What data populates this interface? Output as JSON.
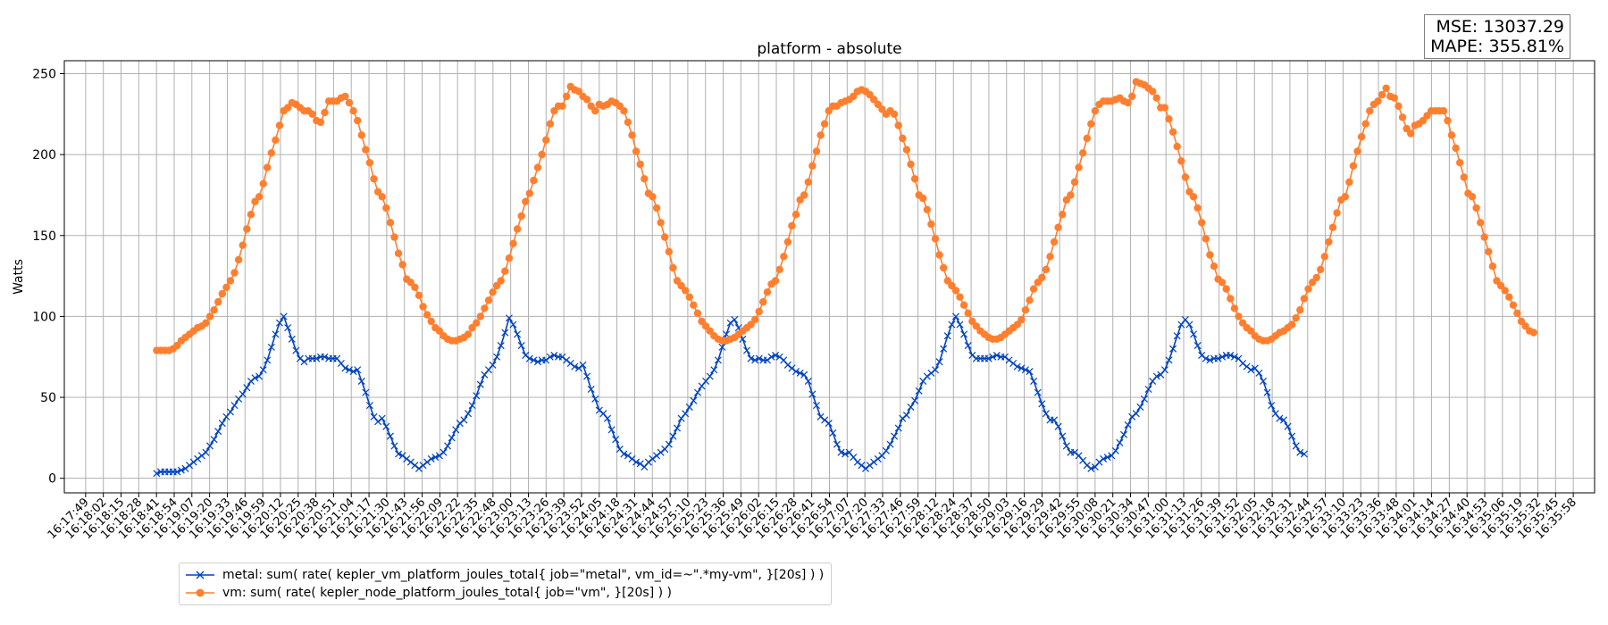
{
  "metrics": {
    "mse": "MSE: 13037.29",
    "mape": "MAPE: 355.81%"
  },
  "chart_data": {
    "type": "line",
    "title": "platform - absolute",
    "xlabel": "",
    "ylabel": "Watts",
    "ylim": [
      -9,
      258
    ],
    "yticks": [
      0,
      50,
      100,
      150,
      200,
      250
    ],
    "grid": true,
    "legend_position": "lower-left, below plot",
    "x_ticks": [
      "16:17:49",
      "16:18:02",
      "16:18:15",
      "16:18:28",
      "16:18:41",
      "16:18:54",
      "16:19:07",
      "16:19:20",
      "16:19:33",
      "16:19:46",
      "16:19:59",
      "16:20:12",
      "16:20:25",
      "16:20:38",
      "16:20:51",
      "16:21:04",
      "16:21:17",
      "16:21:30",
      "16:21:43",
      "16:21:56",
      "16:22:09",
      "16:22:22",
      "16:22:35",
      "16:22:48",
      "16:23:00",
      "16:23:13",
      "16:23:26",
      "16:23:39",
      "16:23:52",
      "16:24:05",
      "16:24:18",
      "16:24:31",
      "16:24:44",
      "16:24:57",
      "16:25:10",
      "16:25:23",
      "16:25:36",
      "16:25:49",
      "16:26:02",
      "16:26:15",
      "16:26:28",
      "16:26:41",
      "16:26:54",
      "16:27:07",
      "16:27:20",
      "16:27:33",
      "16:27:46",
      "16:27:59",
      "16:28:12",
      "16:28:24",
      "16:28:37",
      "16:28:50",
      "16:29:03",
      "16:29:16",
      "16:29:29",
      "16:29:42",
      "16:29:55",
      "16:30:08",
      "16:30:21",
      "16:30:34",
      "16:30:47",
      "16:31:00",
      "16:31:13",
      "16:31:26",
      "16:31:39",
      "16:31:52",
      "16:32:05",
      "16:32:18",
      "16:32:31",
      "16:32:44",
      "16:32:57",
      "16:33:10",
      "16:33:23",
      "16:33:36",
      "16:33:48",
      "16:34:01",
      "16:34:14",
      "16:34:27",
      "16:34:40",
      "16:34:53",
      "16:35:06",
      "16:35:19",
      "16:35:32",
      "16:35:45",
      "16:35:58"
    ],
    "x_range": [
      "16:17:49",
      "16:35:58"
    ],
    "series": [
      {
        "name": "metal: sum( rate( kepler_vm_platform_joules_total{ job=\"metal\", vm_id=~\".*my-vm\", }[20s] ) )",
        "color": "#0043bf",
        "marker": "x",
        "start": "16:18:41",
        "step_seconds": 3,
        "values": [
          3,
          4,
          4,
          4,
          4,
          4,
          5,
          6,
          8,
          10,
          12,
          14,
          16,
          20,
          24,
          29,
          34,
          38,
          41,
          45,
          49,
          52,
          56,
          60,
          62,
          63,
          67,
          73,
          81,
          89,
          96,
          100,
          93,
          86,
          79,
          74,
          72,
          74,
          74,
          74,
          75,
          75,
          74,
          74,
          74,
          71,
          68,
          67,
          66,
          67,
          60,
          53,
          45,
          38,
          35,
          37,
          32,
          26,
          20,
          15,
          14,
          12,
          10,
          8,
          6,
          8,
          10,
          12,
          13,
          14,
          16,
          20,
          25,
          30,
          34,
          36,
          40,
          45,
          51,
          58,
          64,
          67,
          70,
          75,
          82,
          90,
          99,
          95,
          89,
          82,
          76,
          74,
          73,
          72,
          73,
          73,
          75,
          76,
          75,
          75,
          73,
          71,
          69,
          68,
          70,
          63,
          55,
          49,
          42,
          40,
          37,
          30,
          24,
          18,
          15,
          14,
          12,
          10,
          9,
          7,
          10,
          12,
          14,
          16,
          18,
          21,
          26,
          31,
          37,
          40,
          44,
          48,
          53,
          57,
          60,
          63,
          67,
          73,
          81,
          89,
          96,
          98,
          93,
          86,
          79,
          74,
          73,
          74,
          73,
          73,
          75,
          76,
          75,
          73,
          70,
          68,
          66,
          65,
          64,
          60,
          52,
          45,
          38,
          36,
          34,
          28,
          21,
          16,
          15,
          16,
          13,
          10,
          8,
          6,
          8,
          10,
          12,
          14,
          17,
          21,
          26,
          31,
          37,
          39,
          44,
          48,
          54,
          60,
          63,
          65,
          67,
          72,
          80,
          88,
          95,
          100,
          95,
          89,
          82,
          76,
          74,
          74,
          74,
          74,
          75,
          76,
          75,
          75,
          73,
          71,
          69,
          68,
          67,
          66,
          60,
          53,
          46,
          40,
          36,
          36,
          32,
          26,
          20,
          16,
          16,
          14,
          11,
          8,
          6,
          7,
          10,
          12,
          13,
          14,
          17,
          22,
          27,
          33,
          38,
          40,
          44,
          49,
          55,
          60,
          63,
          64,
          67,
          73,
          80,
          88,
          95,
          98,
          95,
          89,
          82,
          76,
          74,
          73,
          74,
          74,
          75,
          76,
          76,
          75,
          74,
          71,
          69,
          67,
          68,
          65,
          60,
          53,
          45,
          40,
          37,
          36,
          32,
          26,
          20,
          16,
          15
        ]
      },
      {
        "name": "vm: sum( rate( kepler_node_platform_joules_total{ job=\"vm\", }[20s] ) )",
        "color": "#ff7f2f",
        "marker": "o",
        "start": "16:18:41",
        "step_seconds": 3,
        "values": [
          79,
          79,
          79,
          79,
          80,
          82,
          85,
          87,
          89,
          91,
          93,
          94,
          96,
          100,
          104,
          109,
          114,
          118,
          122,
          127,
          135,
          144,
          154,
          163,
          171,
          174,
          182,
          192,
          201,
          209,
          218,
          227,
          229,
          232,
          231,
          229,
          227,
          227,
          225,
          221,
          220,
          226,
          233,
          233,
          233,
          235,
          236,
          232,
          227,
          221,
          212,
          203,
          195,
          185,
          177,
          174,
          167,
          158,
          149,
          139,
          132,
          123,
          121,
          118,
          113,
          106,
          101,
          97,
          93,
          91,
          88,
          86,
          85,
          85,
          86,
          87,
          89,
          93,
          96,
          100,
          105,
          110,
          115,
          119,
          122,
          128,
          136,
          145,
          154,
          162,
          171,
          176,
          184,
          192,
          200,
          209,
          219,
          227,
          230,
          230,
          236,
          242,
          240,
          239,
          236,
          234,
          230,
          227,
          231,
          230,
          231,
          233,
          232,
          230,
          227,
          220,
          212,
          202,
          194,
          185,
          176,
          174,
          167,
          158,
          149,
          140,
          130,
          122,
          119,
          116,
          112,
          107,
          102,
          97,
          94,
          91,
          88,
          86,
          85,
          85,
          86,
          87,
          89,
          91,
          93,
          95,
          98,
          103,
          109,
          115,
          120,
          122,
          129,
          137,
          146,
          156,
          163,
          172,
          175,
          183,
          193,
          202,
          212,
          219,
          227,
          230,
          230,
          232,
          233,
          234,
          236,
          239,
          240,
          239,
          237,
          234,
          231,
          228,
          225,
          227,
          225,
          218,
          210,
          203,
          194,
          185,
          175,
          173,
          166,
          157,
          148,
          138,
          130,
          122,
          119,
          116,
          112,
          107,
          102,
          97,
          94,
          91,
          89,
          87,
          86,
          86,
          87,
          89,
          91,
          93,
          95,
          98,
          104,
          110,
          117,
          121,
          124,
          129,
          137,
          146,
          155,
          163,
          172,
          175,
          183,
          192,
          201,
          210,
          219,
          227,
          231,
          233,
          233,
          233,
          234,
          235,
          233,
          232,
          236,
          245,
          244,
          243,
          241,
          239,
          235,
          229,
          229,
          222,
          214,
          205,
          196,
          186,
          177,
          174,
          167,
          158,
          148,
          138,
          131,
          123,
          121,
          117,
          111,
          105,
          100,
          96,
          93,
          91,
          88,
          86,
          85,
          85,
          86,
          88,
          90,
          91,
          93,
          95,
          99,
          104,
          111,
          117,
          121,
          124,
          129,
          137,
          146,
          155,
          164,
          172,
          174,
          183,
          193,
          202,
          211,
          219,
          227,
          231,
          233,
          237,
          241,
          236,
          235,
          230,
          223,
          216,
          213,
          218,
          219,
          221,
          224,
          227,
          227,
          227,
          227,
          221,
          212,
          204,
          195,
          186,
          176,
          174,
          167,
          158,
          149,
          140,
          131,
          122,
          119,
          116,
          112,
          107,
          102,
          97,
          94,
          91,
          90
        ]
      }
    ]
  }
}
